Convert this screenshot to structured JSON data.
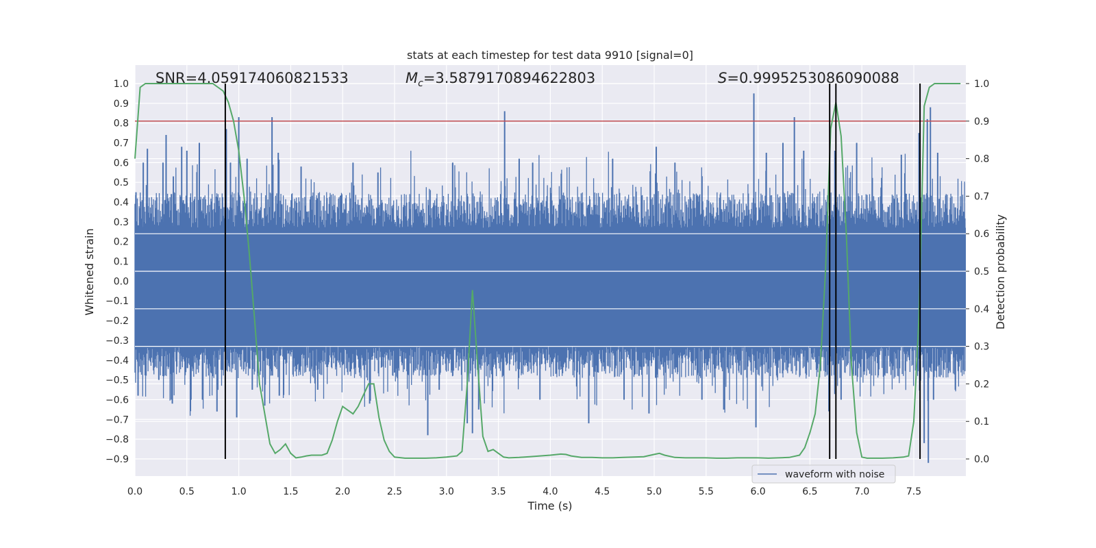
{
  "chart_data": {
    "type": "line",
    "title": "stats at each timestep for test data 9910 [signal=0]",
    "xlabel": "Time (s)",
    "ylabel": "Whitened strain",
    "y2label": "Detection probability",
    "xlim": [
      0.0,
      8.0
    ],
    "ylim": [
      -1.0,
      1.05
    ],
    "y2lim": [
      -0.05,
      1.03
    ],
    "xticks": [
      "0.0",
      "0.5",
      "1.0",
      "1.5",
      "2.0",
      "2.5",
      "3.0",
      "3.5",
      "4.0",
      "4.5",
      "5.0",
      "5.5",
      "6.0",
      "6.5",
      "7.0",
      "7.5"
    ],
    "yticks": [
      "1.0",
      "0.9",
      "0.8",
      "0.7",
      "0.6",
      "0.5",
      "0.4",
      "0.3",
      "0.2",
      "0.1",
      "0.0",
      "−0.1",
      "−0.2",
      "−0.3",
      "−0.4",
      "−0.5",
      "−0.6",
      "−0.7",
      "−0.8",
      "−0.9"
    ],
    "y2ticks": [
      "1.0",
      "0.9",
      "0.8",
      "0.7",
      "0.6",
      "0.5",
      "0.4",
      "0.3",
      "0.2",
      "0.1",
      "0.0"
    ],
    "grid": true,
    "annotations": {
      "snr_text": "SNR=4.059174060821533",
      "mc_symbol": "M",
      "mc_subscript": "c",
      "mc_value": "=3.5879170894622803",
      "s_symbol": "S",
      "s_value": "=0.9995253086090088"
    },
    "legend": {
      "label": "waveform with noise",
      "placement": "lower-right"
    },
    "threshold": {
      "value": 0.9,
      "axis": "right",
      "color": "#c44e52"
    },
    "detection_markers_x": [
      0.87,
      6.69,
      6.75,
      7.56
    ],
    "waveform": {
      "name": "waveform with noise",
      "color": "#4c72b0",
      "sample_count": 1400,
      "core_range": [
        -0.33,
        0.27
      ],
      "peaks": [
        {
          "x": 0.01,
          "y": 0.45
        },
        {
          "x": 0.03,
          "y": -0.58
        },
        {
          "x": 0.08,
          "y": 0.6
        },
        {
          "x": 0.12,
          "y": 0.67
        },
        {
          "x": 0.23,
          "y": -0.5
        },
        {
          "x": 0.27,
          "y": 0.6
        },
        {
          "x": 0.3,
          "y": 0.74
        },
        {
          "x": 0.37,
          "y": 0.53
        },
        {
          "x": 0.36,
          "y": -0.62
        },
        {
          "x": 0.45,
          "y": 0.68
        },
        {
          "x": 0.5,
          "y": 0.66
        },
        {
          "x": 0.54,
          "y": -0.6
        },
        {
          "x": 0.62,
          "y": 0.7
        },
        {
          "x": 0.65,
          "y": -0.6
        },
        {
          "x": 0.79,
          "y": -0.66
        },
        {
          "x": 0.88,
          "y": 0.77
        },
        {
          "x": 0.92,
          "y": 0.6
        },
        {
          "x": 0.98,
          "y": -0.69
        },
        {
          "x": 1.0,
          "y": 0.83
        },
        {
          "x": 1.08,
          "y": 0.62
        },
        {
          "x": 1.13,
          "y": -0.55
        },
        {
          "x": 1.25,
          "y": -0.63
        },
        {
          "x": 1.32,
          "y": 0.83
        },
        {
          "x": 1.38,
          "y": 0.65
        },
        {
          "x": 1.39,
          "y": -0.58
        },
        {
          "x": 1.6,
          "y": 0.58
        },
        {
          "x": 1.76,
          "y": -0.55
        },
        {
          "x": 2.1,
          "y": 0.6
        },
        {
          "x": 2.26,
          "y": -0.62
        },
        {
          "x": 2.34,
          "y": 0.55
        },
        {
          "x": 2.82,
          "y": -0.78
        },
        {
          "x": 2.93,
          "y": -0.55
        },
        {
          "x": 3.06,
          "y": 0.6
        },
        {
          "x": 3.2,
          "y": -0.72
        },
        {
          "x": 3.25,
          "y": -0.77
        },
        {
          "x": 3.31,
          "y": -0.65
        },
        {
          "x": 3.56,
          "y": 0.86
        },
        {
          "x": 3.7,
          "y": 0.62
        },
        {
          "x": 3.83,
          "y": 0.6
        },
        {
          "x": 3.9,
          "y": -0.6
        },
        {
          "x": 4.37,
          "y": -0.72
        },
        {
          "x": 4.6,
          "y": 0.62
        },
        {
          "x": 4.71,
          "y": -0.6
        },
        {
          "x": 4.95,
          "y": -0.67
        },
        {
          "x": 5.02,
          "y": 0.68
        },
        {
          "x": 5.2,
          "y": 0.6
        },
        {
          "x": 5.46,
          "y": -0.6
        },
        {
          "x": 5.67,
          "y": -0.65
        },
        {
          "x": 5.96,
          "y": 0.95
        },
        {
          "x": 5.98,
          "y": -0.74
        },
        {
          "x": 6.08,
          "y": 0.65
        },
        {
          "x": 6.24,
          "y": 0.7
        },
        {
          "x": 6.35,
          "y": 0.83
        },
        {
          "x": 6.44,
          "y": 0.66
        },
        {
          "x": 6.74,
          "y": 0.66
        },
        {
          "x": 6.8,
          "y": -0.6
        },
        {
          "x": 6.95,
          "y": 0.7
        },
        {
          "x": 7.38,
          "y": 0.64
        },
        {
          "x": 7.55,
          "y": 0.75
        },
        {
          "x": 7.6,
          "y": -0.82
        },
        {
          "x": 7.63,
          "y": 0.82
        },
        {
          "x": 7.64,
          "y": -0.92
        },
        {
          "x": 7.66,
          "y": 0.88
        },
        {
          "x": 7.69,
          "y": -0.6
        },
        {
          "x": 7.73,
          "y": 0.65
        },
        {
          "x": 7.9,
          "y": -0.55
        }
      ]
    },
    "detection_probability": {
      "color": "#55a868",
      "x": [
        0.0,
        0.05,
        0.1,
        0.15,
        0.2,
        0.3,
        0.4,
        0.5,
        0.6,
        0.7,
        0.75,
        0.8,
        0.85,
        0.9,
        0.95,
        1.0,
        1.05,
        1.1,
        1.15,
        1.2,
        1.25,
        1.3,
        1.35,
        1.4,
        1.45,
        1.5,
        1.55,
        1.6,
        1.65,
        1.7,
        1.8,
        1.85,
        1.9,
        1.95,
        2.0,
        2.05,
        2.1,
        2.15,
        2.2,
        2.25,
        2.3,
        2.35,
        2.4,
        2.45,
        2.5,
        2.6,
        2.7,
        2.8,
        2.9,
        3.0,
        3.1,
        3.15,
        3.2,
        3.25,
        3.3,
        3.35,
        3.4,
        3.45,
        3.5,
        3.55,
        3.6,
        3.7,
        3.8,
        3.9,
        4.0,
        4.1,
        4.15,
        4.2,
        4.3,
        4.4,
        4.5,
        4.6,
        4.7,
        4.8,
        4.9,
        5.0,
        5.05,
        5.1,
        5.2,
        5.3,
        5.4,
        5.5,
        5.6,
        5.7,
        5.8,
        5.9,
        6.0,
        6.1,
        6.2,
        6.3,
        6.4,
        6.45,
        6.5,
        6.55,
        6.6,
        6.65,
        6.7,
        6.75,
        6.8,
        6.85,
        6.9,
        6.95,
        7.0,
        7.05,
        7.1,
        7.2,
        7.3,
        7.4,
        7.45,
        7.5,
        7.55,
        7.6,
        7.65,
        7.7,
        7.8,
        7.95
      ],
      "y": [
        0.8,
        0.99,
        1.0,
        1.0,
        1.0,
        1.0,
        1.0,
        1.0,
        1.0,
        1.0,
        1.0,
        0.99,
        0.98,
        0.95,
        0.9,
        0.82,
        0.7,
        0.55,
        0.38,
        0.2,
        0.12,
        0.04,
        0.015,
        0.025,
        0.04,
        0.015,
        0.003,
        0.005,
        0.008,
        0.01,
        0.01,
        0.015,
        0.05,
        0.1,
        0.14,
        0.13,
        0.12,
        0.14,
        0.17,
        0.2,
        0.2,
        0.11,
        0.05,
        0.02,
        0.005,
        0.002,
        0.002,
        0.002,
        0.003,
        0.005,
        0.008,
        0.02,
        0.2,
        0.45,
        0.25,
        0.06,
        0.02,
        0.025,
        0.015,
        0.005,
        0.003,
        0.004,
        0.006,
        0.008,
        0.01,
        0.013,
        0.012,
        0.008,
        0.004,
        0.004,
        0.003,
        0.003,
        0.004,
        0.005,
        0.006,
        0.012,
        0.015,
        0.01,
        0.004,
        0.003,
        0.003,
        0.003,
        0.002,
        0.002,
        0.003,
        0.003,
        0.003,
        0.002,
        0.003,
        0.004,
        0.01,
        0.03,
        0.07,
        0.12,
        0.25,
        0.5,
        0.88,
        0.95,
        0.86,
        0.6,
        0.25,
        0.07,
        0.005,
        0.002,
        0.002,
        0.002,
        0.003,
        0.005,
        0.008,
        0.1,
        0.38,
        0.94,
        0.99,
        1.0,
        1.0,
        1.0
      ]
    }
  }
}
